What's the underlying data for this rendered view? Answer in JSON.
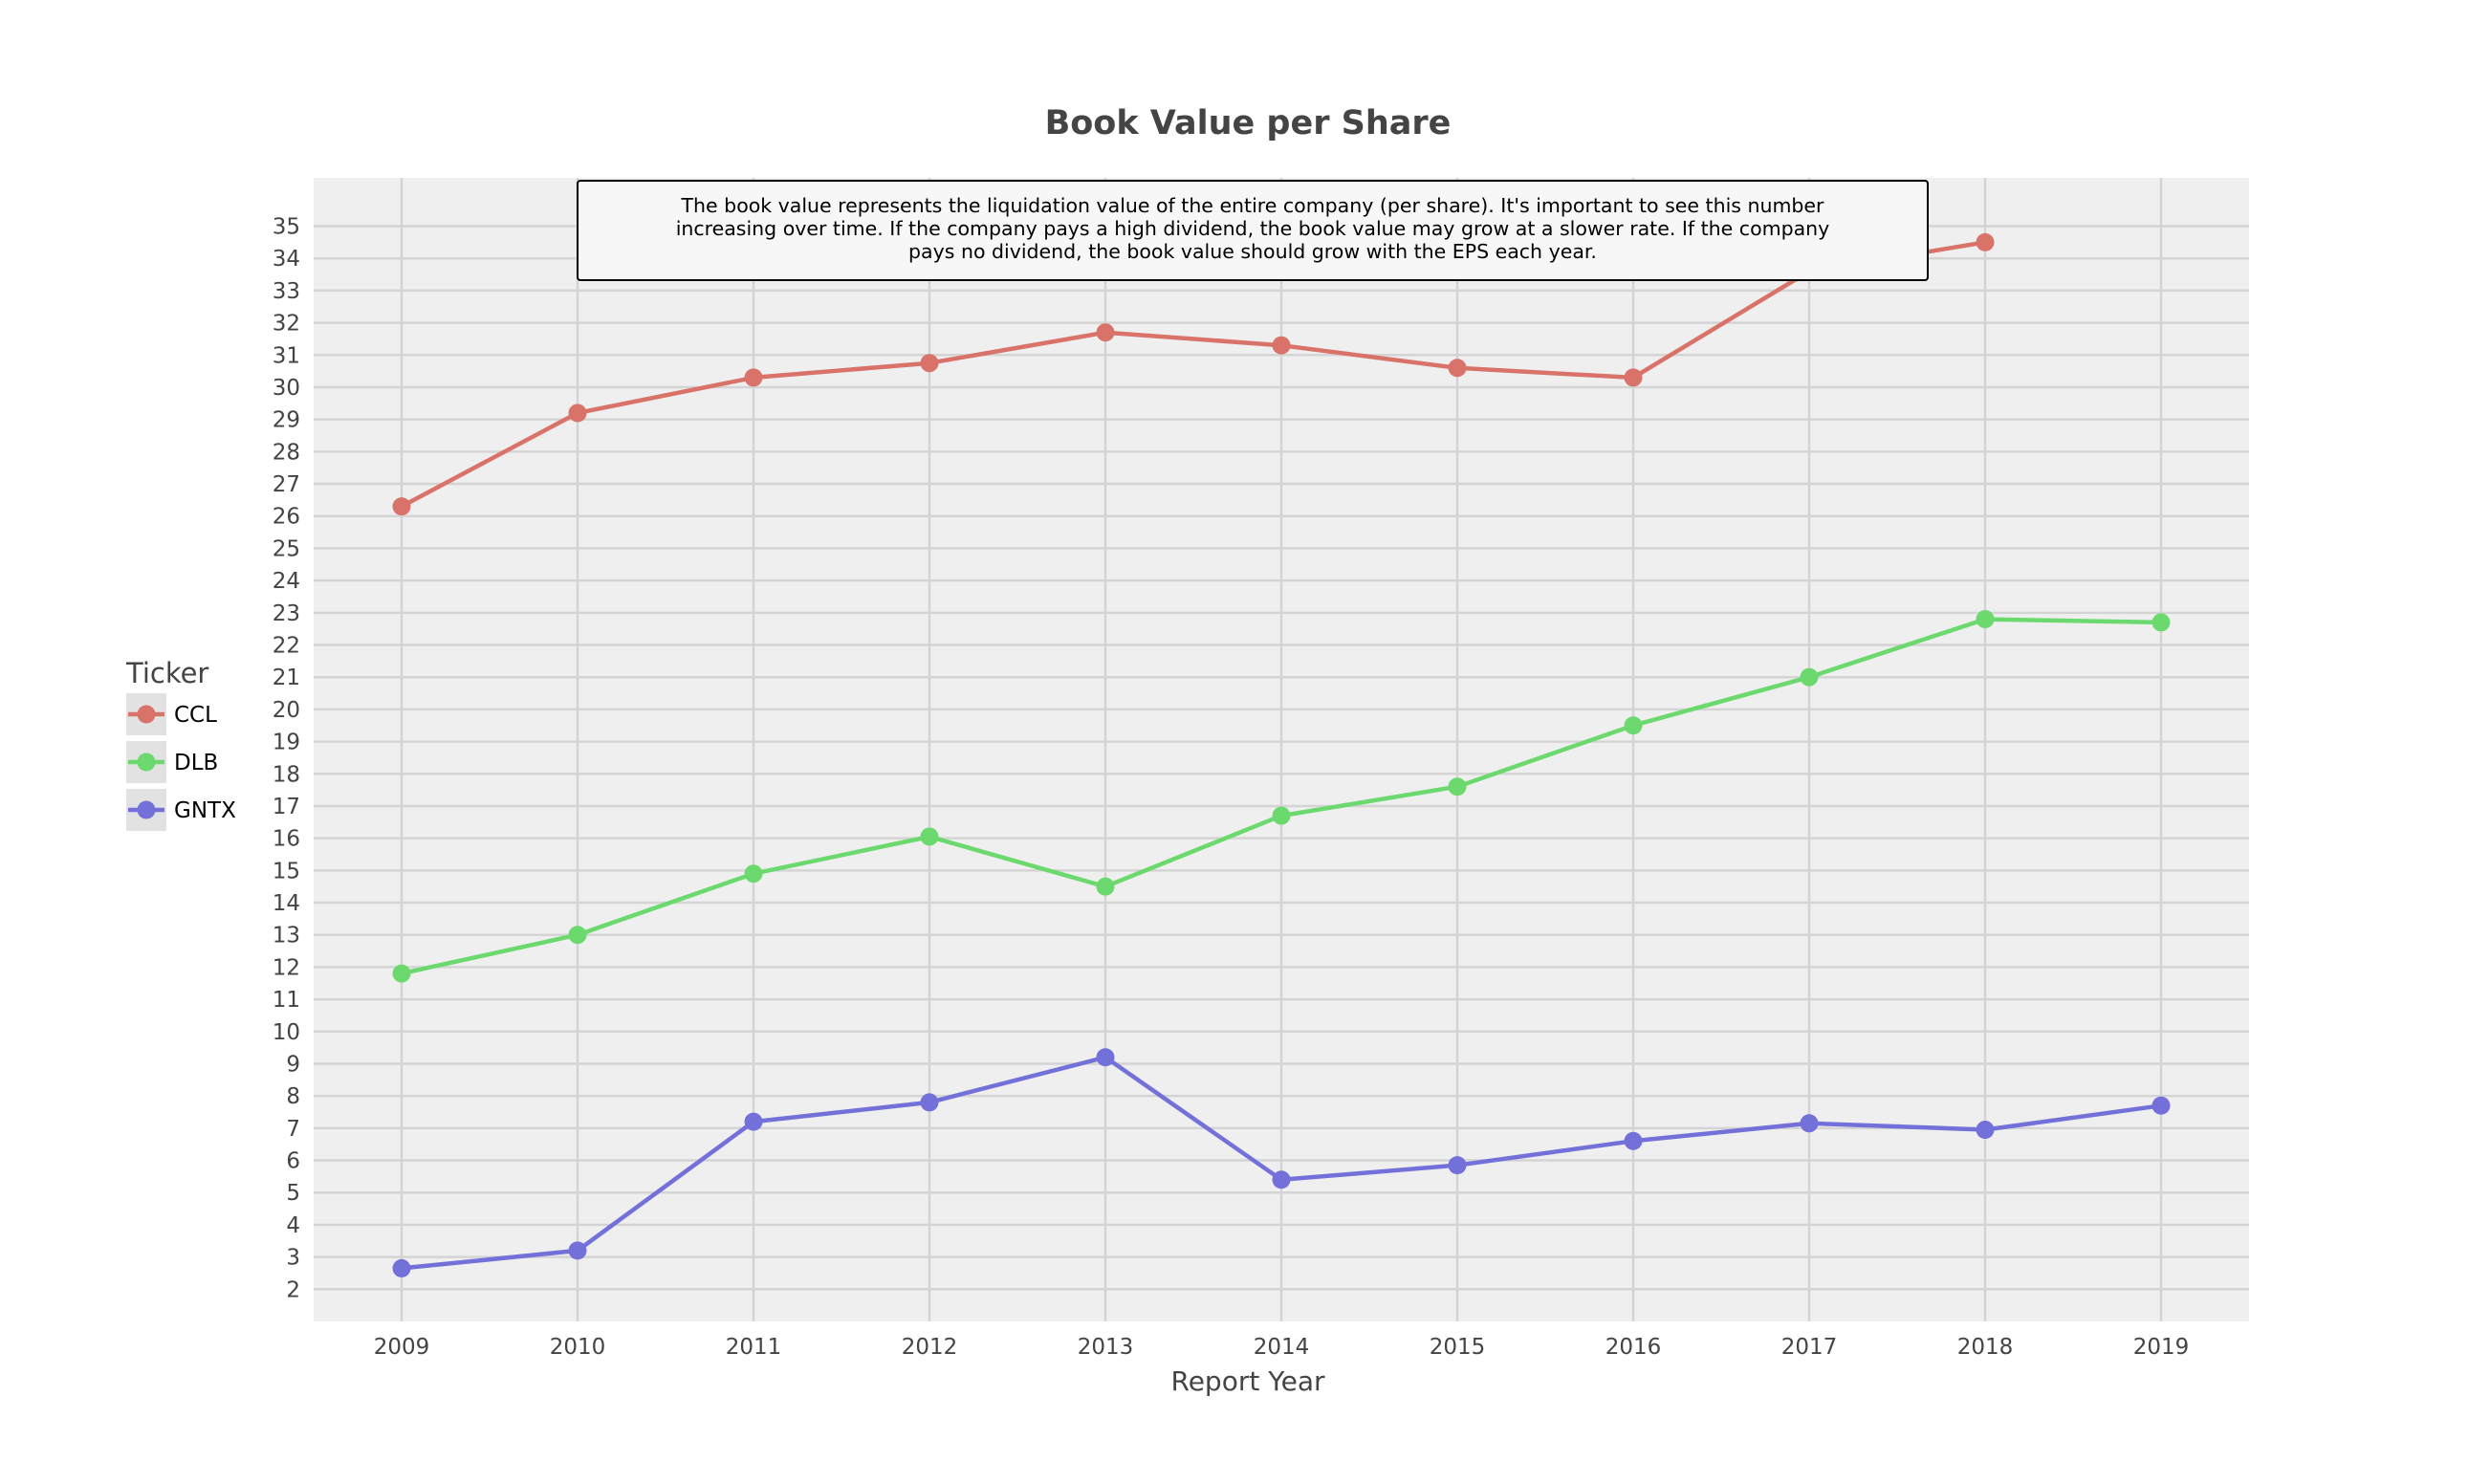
{
  "chart_data": {
    "type": "line",
    "title": "Book Value per Share",
    "xlabel": "Report Year",
    "ylabel": "",
    "x": [
      2009,
      2010,
      2011,
      2012,
      2013,
      2014,
      2015,
      2016,
      2017,
      2018,
      2019
    ],
    "xlim": [
      2008.5,
      2019.5
    ],
    "ylim": [
      1,
      36.5
    ],
    "yticks": [
      2,
      3,
      4,
      5,
      6,
      7,
      8,
      9,
      10,
      11,
      12,
      13,
      14,
      15,
      16,
      17,
      18,
      19,
      20,
      21,
      22,
      23,
      24,
      25,
      26,
      27,
      28,
      29,
      30,
      31,
      32,
      33,
      34,
      35
    ],
    "grid": true,
    "legend": {
      "title": "Ticker",
      "placement": "left-middle"
    },
    "series": [
      {
        "name": "CCL",
        "color": "#d9736a",
        "values": [
          26.3,
          29.2,
          30.3,
          30.75,
          31.7,
          31.3,
          30.6,
          30.3,
          33.6,
          34.5,
          null
        ]
      },
      {
        "name": "DLB",
        "color": "#6cd96f",
        "values": [
          11.8,
          13.0,
          14.9,
          16.05,
          14.5,
          16.7,
          17.6,
          19.5,
          21.0,
          22.8,
          22.7
        ]
      },
      {
        "name": "GNTX",
        "color": "#7371d9",
        "values": [
          2.65,
          3.2,
          7.2,
          7.8,
          9.2,
          5.4,
          5.85,
          6.6,
          7.15,
          6.95,
          7.7
        ]
      }
    ],
    "annotation": "The book value represents the liquidation value of the entire company (per share). It's important to see this number increasing over time. If the company pays a high dividend, the book value may grow at a slower rate. If the company pays no dividend, the book value should grow with the EPS each year.",
    "colors": {
      "plot_background": "#efefef",
      "grid": "#d4d4d4",
      "text": "#444444",
      "annotation_background": "#f7f7f7",
      "annotation_border": "#000000",
      "legend_swatch": "#e2e2e2"
    }
  }
}
